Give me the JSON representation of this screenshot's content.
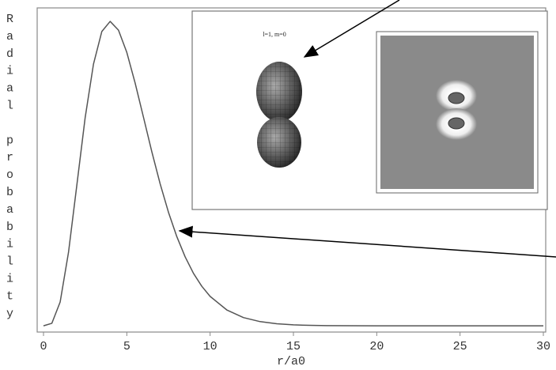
{
  "chart_data": {
    "type": "line",
    "x_label": "r/a0",
    "y_label": "Radial probability",
    "x": [
      0,
      0.5,
      1,
      1.5,
      2,
      2.5,
      3,
      3.5,
      4,
      4.5,
      5,
      5.5,
      6,
      6.5,
      7,
      7.5,
      8,
      8.5,
      9,
      9.5,
      10,
      11,
      12,
      13,
      14,
      15,
      16,
      17,
      20,
      25,
      30
    ],
    "values": [
      0,
      0.0016,
      0.0153,
      0.0471,
      0.0902,
      0.1336,
      0.168,
      0.1889,
      0.1954,
      0.1898,
      0.1755,
      0.1558,
      0.1339,
      0.1118,
      0.0912,
      0.0729,
      0.0573,
      0.0443,
      0.0337,
      0.0254,
      0.0189,
      0.0102,
      0.0053,
      0.0027,
      0.0013,
      0.0006,
      0.0003,
      0.0001,
      0,
      0,
      0
    ],
    "color": "#555555",
    "xlim": [
      0,
      30
    ],
    "xticks": [
      0,
      5,
      10,
      15,
      20,
      25,
      30
    ],
    "ylim": [
      -0.004,
      0.2
    ],
    "inset_label": "l=1, m=0"
  }
}
